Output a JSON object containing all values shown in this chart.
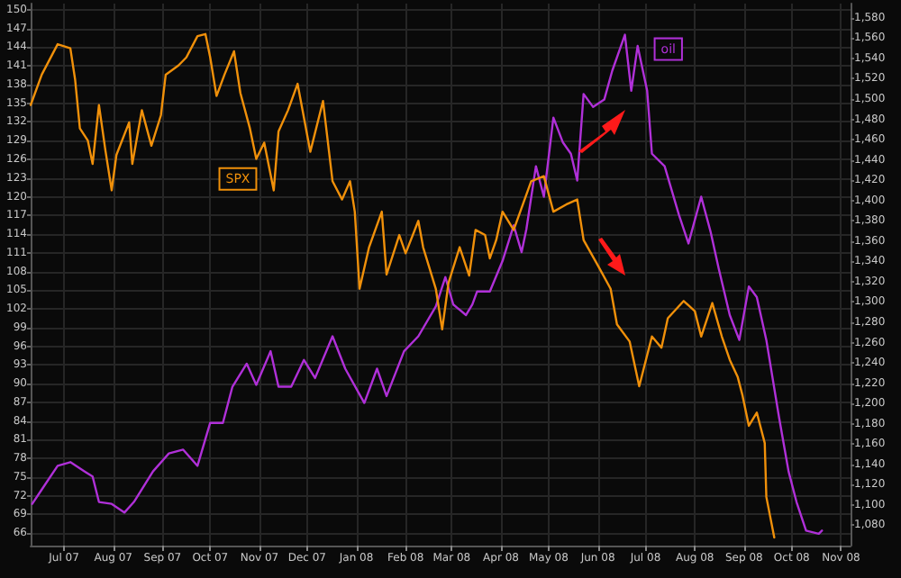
{
  "chart_data": {
    "type": "line",
    "grid": true,
    "legend": false,
    "marker": "none",
    "line_style": "solid",
    "xlim": [
      "2007-06-25",
      "2008-11-22"
    ],
    "xticks": [
      {
        "value": "2007-07-16",
        "label": "Jul 07"
      },
      {
        "value": "2007-08-16",
        "label": "Aug 07"
      },
      {
        "value": "2007-09-16",
        "label": "Sep 07"
      },
      {
        "value": "2007-10-16",
        "label": "Oct 07"
      },
      {
        "value": "2007-11-16",
        "label": "Nov 07"
      },
      {
        "value": "2007-12-16",
        "label": "Dec 07"
      },
      {
        "value": "2008-01-16",
        "label": "Jan 08"
      },
      {
        "value": "2008-02-16",
        "label": "Feb 08"
      },
      {
        "value": "2008-03-16",
        "label": "Mar 08"
      },
      {
        "value": "2008-04-16",
        "label": "Apr 08"
      },
      {
        "value": "2008-05-16",
        "label": "May 08"
      },
      {
        "value": "2008-06-16",
        "label": "Jun 08"
      },
      {
        "value": "2008-07-16",
        "label": "Jul 08"
      },
      {
        "value": "2008-08-16",
        "label": "Aug 08"
      },
      {
        "value": "2008-09-16",
        "label": "Sep 08"
      },
      {
        "value": "2008-10-16",
        "label": "Oct 08"
      },
      {
        "value": "2008-11-16",
        "label": "Nov 08"
      }
    ],
    "ylim": [
      64,
      151
    ],
    "yticks": [
      66,
      69,
      72,
      75,
      78,
      81,
      84,
      87,
      90,
      93,
      96,
      99,
      102,
      105,
      108,
      111,
      114,
      117,
      120,
      123,
      126,
      129,
      132,
      135,
      138,
      141,
      144,
      147,
      150
    ],
    "y2lim": [
      1060,
      1594
    ],
    "y2ticks": [
      {
        "value": 1080,
        "label": "1,080"
      },
      {
        "value": 1100,
        "label": "1,100"
      },
      {
        "value": 1120,
        "label": "1,120"
      },
      {
        "value": 1140,
        "label": "1,140"
      },
      {
        "value": 1160,
        "label": "1,160"
      },
      {
        "value": 1180,
        "label": "1,180"
      },
      {
        "value": 1200,
        "label": "1,200"
      },
      {
        "value": 1220,
        "label": "1,220"
      },
      {
        "value": 1240,
        "label": "1,240"
      },
      {
        "value": 1260,
        "label": "1,260"
      },
      {
        "value": 1280,
        "label": "1,280"
      },
      {
        "value": 1300,
        "label": "1,300"
      },
      {
        "value": 1320,
        "label": "1,320"
      },
      {
        "value": 1340,
        "label": "1,340"
      },
      {
        "value": 1360,
        "label": "1,360"
      },
      {
        "value": 1380,
        "label": "1,380"
      },
      {
        "value": 1400,
        "label": "1,400"
      },
      {
        "value": 1420,
        "label": "1,420"
      },
      {
        "value": 1440,
        "label": "1,440"
      },
      {
        "value": 1460,
        "label": "1,460"
      },
      {
        "value": 1480,
        "label": "1,480"
      },
      {
        "value": 1500,
        "label": "1,500"
      },
      {
        "value": 1520,
        "label": "1,520"
      },
      {
        "value": 1540,
        "label": "1,540"
      },
      {
        "value": 1560,
        "label": "1,560"
      },
      {
        "value": 1580,
        "label": "1,580"
      }
    ],
    "series": [
      {
        "name": "oil",
        "color": "#b030d8",
        "x": [
          "2007-06-26",
          "2007-07-02",
          "2007-07-12",
          "2007-07-20",
          "2007-07-29",
          "2007-08-03",
          "2007-08-07",
          "2007-08-15",
          "2007-08-23",
          "2007-08-29",
          "2007-09-10",
          "2007-09-20",
          "2007-09-29",
          "2007-10-08",
          "2007-10-16",
          "2007-10-24",
          "2007-10-30",
          "2007-11-08",
          "2007-11-14",
          "2007-11-23",
          "2007-11-28",
          "2007-12-06",
          "2007-12-14",
          "2007-12-21",
          "2008-01-01",
          "2008-01-09",
          "2008-01-21",
          "2008-01-29",
          "2008-02-04",
          "2008-02-15",
          "2008-02-24",
          "2008-03-06",
          "2008-03-12",
          "2008-03-17",
          "2008-03-25",
          "2008-03-29",
          "2008-04-01",
          "2008-04-09",
          "2008-04-17",
          "2008-04-24",
          "2008-04-29",
          "2008-05-02",
          "2008-05-08",
          "2008-05-13",
          "2008-05-19",
          "2008-05-25",
          "2008-05-30",
          "2008-06-03",
          "2008-06-07",
          "2008-06-13",
          "2008-06-20",
          "2008-06-25",
          "2008-07-03",
          "2008-07-07",
          "2008-07-11",
          "2008-07-17",
          "2008-07-20",
          "2008-07-28",
          "2008-08-06",
          "2008-08-12",
          "2008-08-20",
          "2008-08-26",
          "2008-08-31",
          "2008-09-07",
          "2008-09-13",
          "2008-09-19",
          "2008-09-24",
          "2008-09-30",
          "2008-10-08",
          "2008-10-14",
          "2008-10-19",
          "2008-10-25",
          "2008-11-02",
          "2008-11-04"
        ],
        "values": [
          70.7,
          73.0,
          76.8,
          77.4,
          75.9,
          75.1,
          71.0,
          70.7,
          69.3,
          71.0,
          75.9,
          78.8,
          79.4,
          76.8,
          83.7,
          83.7,
          89.5,
          93.2,
          89.8,
          95.2,
          89.5,
          89.5,
          93.8,
          90.9,
          97.6,
          92.4,
          86.9,
          92.4,
          88.0,
          95.2,
          97.6,
          102.4,
          107.1,
          102.7,
          101.0,
          102.7,
          104.8,
          104.8,
          109.7,
          115.4,
          111.1,
          114.8,
          124.9,
          120.0,
          132.7,
          128.7,
          126.9,
          122.6,
          136.5,
          134.4,
          135.6,
          140.2,
          146.0,
          137.0,
          144.2,
          137.0,
          126.9,
          124.9,
          117.1,
          112.5,
          120.0,
          114.3,
          108.5,
          101.0,
          97.0,
          105.6,
          103.9,
          97.0,
          84.6,
          75.9,
          71.0,
          66.4,
          65.9,
          66.4
        ]
      },
      {
        "name": "SPX",
        "color": "#f0900a",
        "axis": "y2",
        "x": [
          "2007-06-25",
          "2007-07-02",
          "2007-07-12",
          "2007-07-20",
          "2007-07-23",
          "2007-07-26",
          "2007-07-31",
          "2007-08-03",
          "2007-08-07",
          "2007-08-11",
          "2007-08-15",
          "2007-08-18",
          "2007-08-26",
          "2007-08-28",
          "2007-09-03",
          "2007-09-09",
          "2007-09-15",
          "2007-09-18",
          "2007-09-26",
          "2007-10-01",
          "2007-10-08",
          "2007-10-13",
          "2007-10-16",
          "2007-10-20",
          "2007-10-25",
          "2007-10-31",
          "2007-11-04",
          "2007-11-10",
          "2007-11-14",
          "2007-11-19",
          "2007-11-25",
          "2007-11-28",
          "2007-12-04",
          "2007-12-10",
          "2007-12-18",
          "2007-12-26",
          "2008-01-01",
          "2008-01-07",
          "2008-01-12",
          "2008-01-15",
          "2008-01-18",
          "2008-01-24",
          "2008-02-01",
          "2008-02-04",
          "2008-02-12",
          "2008-02-16",
          "2008-02-24",
          "2008-02-27",
          "2008-03-06",
          "2008-03-10",
          "2008-03-14",
          "2008-03-21",
          "2008-03-27",
          "2008-03-31",
          "2008-04-06",
          "2008-04-09",
          "2008-04-13",
          "2008-04-17",
          "2008-04-24",
          "2008-05-05",
          "2008-05-13",
          "2008-05-19",
          "2008-05-27",
          "2008-06-03",
          "2008-06-07",
          "2008-06-16",
          "2008-06-24",
          "2008-06-28",
          "2008-07-06",
          "2008-07-12",
          "2008-07-20",
          "2008-07-26",
          "2008-07-30",
          "2008-08-09",
          "2008-08-16",
          "2008-08-20",
          "2008-08-27",
          "2008-09-02",
          "2008-09-07",
          "2008-09-12",
          "2008-09-15",
          "2008-09-19",
          "2008-09-24",
          "2008-09-29",
          "2008-09-30",
          "2008-10-05"
        ],
        "values": [
          1494,
          1524,
          1554,
          1550,
          1519,
          1471,
          1459,
          1436,
          1494,
          1450,
          1410,
          1445,
          1477,
          1436,
          1489,
          1454,
          1484,
          1524,
          1533,
          1541,
          1562,
          1564,
          1541,
          1503,
          1524,
          1547,
          1506,
          1471,
          1441,
          1457,
          1410,
          1468,
          1489,
          1515,
          1448,
          1498,
          1419,
          1401,
          1419,
          1389,
          1313,
          1354,
          1389,
          1327,
          1366,
          1348,
          1380,
          1354,
          1313,
          1273,
          1319,
          1354,
          1326,
          1371,
          1366,
          1343,
          1361,
          1389,
          1371,
          1419,
          1424,
          1389,
          1396,
          1401,
          1361,
          1336,
          1313,
          1278,
          1261,
          1217,
          1266,
          1255,
          1284,
          1301,
          1291,
          1266,
          1299,
          1266,
          1243,
          1226,
          1208,
          1178,
          1191,
          1161,
          1108,
          1068
        ]
      }
    ]
  }
}
